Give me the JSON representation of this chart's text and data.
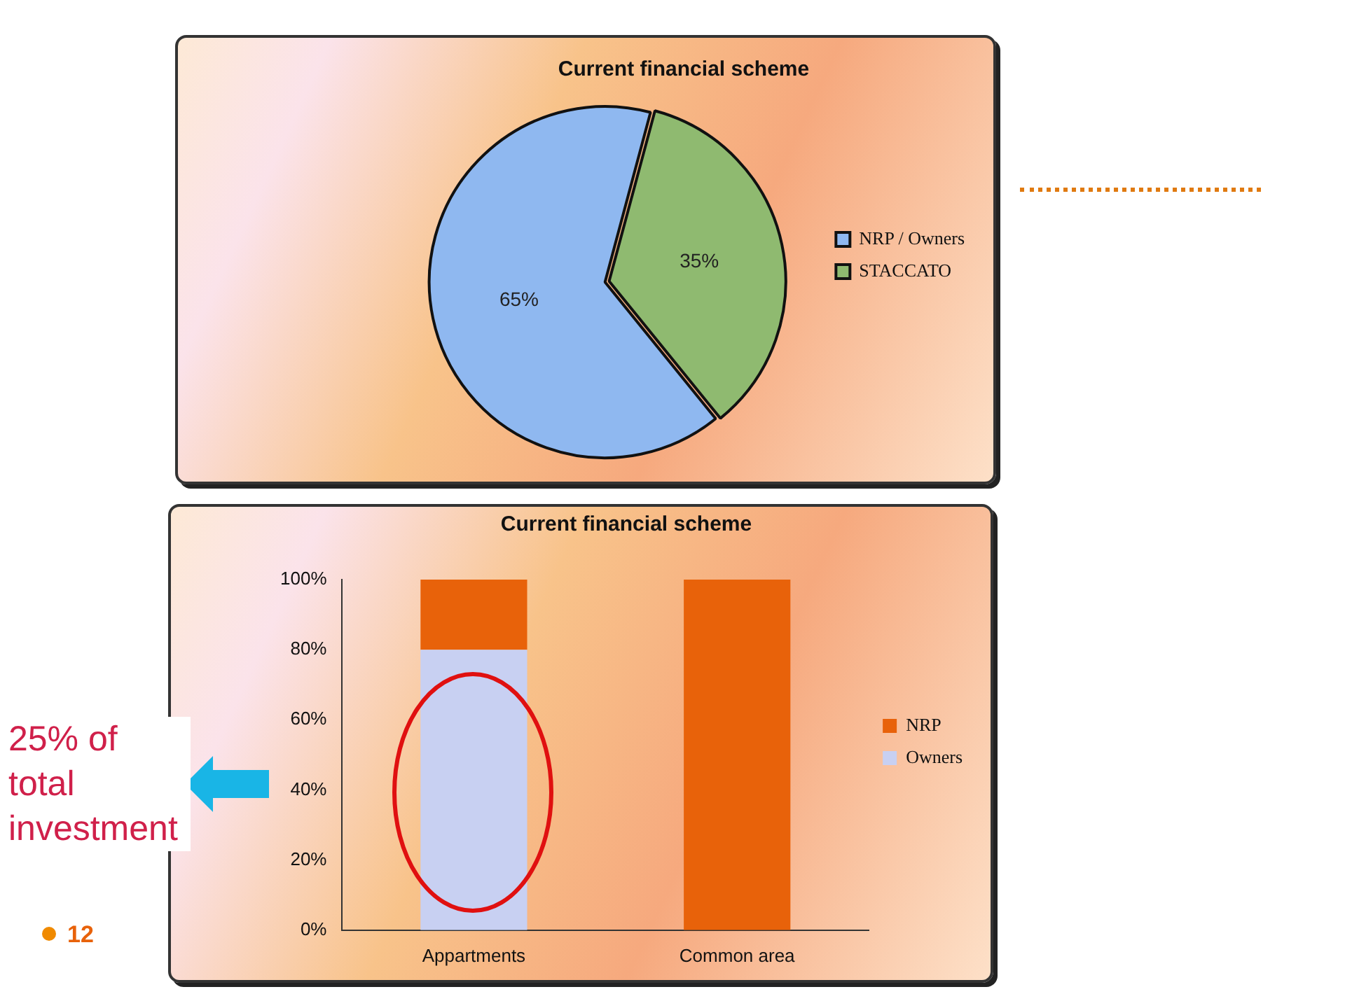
{
  "chart_data": [
    {
      "type": "pie",
      "title": "Current financial scheme",
      "categories": [
        "NRP / Owners",
        "STACCATO"
      ],
      "values": [
        65,
        35
      ],
      "value_labels": [
        "65%",
        "35%"
      ],
      "colors": [
        "#8fb8f0",
        "#8fba70"
      ],
      "legend": "right"
    },
    {
      "type": "bar",
      "title": "Current financial scheme",
      "categories": [
        "Appartments",
        "Common area"
      ],
      "stacked": true,
      "series": [
        {
          "name": "Owners",
          "color": "#c8d0f2",
          "values": [
            80,
            0
          ]
        },
        {
          "name": "NRP",
          "color": "#e8620a",
          "values": [
            20,
            100
          ]
        }
      ],
      "ylim": [
        0,
        100
      ],
      "yticks": [
        {
          "value": 0,
          "label": "0%"
        },
        {
          "value": 20,
          "label": "20%"
        },
        {
          "value": 40,
          "label": "40%"
        },
        {
          "value": 60,
          "label": "60%"
        },
        {
          "value": 80,
          "label": "80%"
        },
        {
          "value": 100,
          "label": "100%"
        }
      ],
      "grid": false,
      "legend": "right",
      "annotations": [
        "25% of total investment",
        "12"
      ]
    }
  ]
}
